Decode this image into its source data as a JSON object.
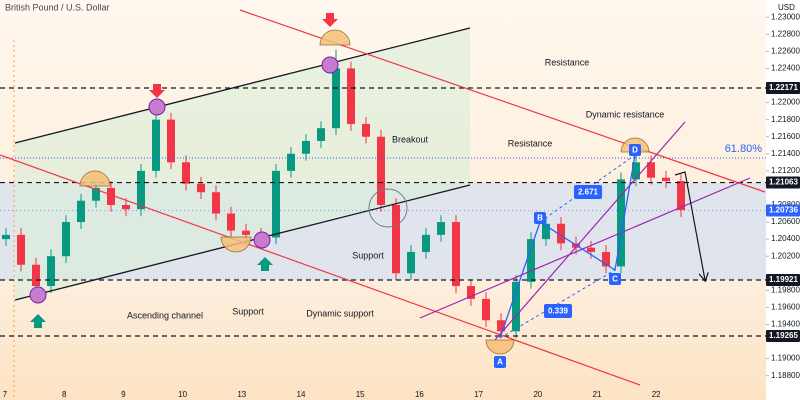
{
  "chart_data": {
    "type": "candlestick",
    "title": "British Pound / U.S. Dollar",
    "currency": "USD",
    "ylim": [
      1.18515,
      1.23202
    ],
    "yticks": [
      {
        "value": 1.188,
        "label": "1.18800"
      },
      {
        "value": 1.19,
        "label": "1.19000"
      },
      {
        "value": 1.194,
        "label": "1.19400"
      },
      {
        "value": 1.196,
        "label": "1.19600"
      },
      {
        "value": 1.198,
        "label": "1.19800"
      },
      {
        "value": 1.202,
        "label": "1.20200"
      },
      {
        "value": 1.204,
        "label": "1.20400"
      },
      {
        "value": 1.206,
        "label": "1.20600"
      },
      {
        "value": 1.208,
        "label": "1.20800"
      },
      {
        "value": 1.212,
        "label": "1.21200"
      },
      {
        "value": 1.214,
        "label": "1.21400"
      },
      {
        "value": 1.216,
        "label": "1.21600"
      },
      {
        "value": 1.218,
        "label": "1.21800"
      },
      {
        "value": 1.22,
        "label": "1.22000"
      },
      {
        "value": 1.224,
        "label": "1.22400"
      },
      {
        "value": 1.226,
        "label": "1.22600"
      },
      {
        "value": 1.228,
        "label": "1.22800"
      },
      {
        "value": 1.23,
        "label": "1.23000"
      }
    ],
    "xticks": [
      7,
      8,
      9,
      10,
      13,
      14,
      15,
      16,
      17,
      20,
      21,
      22
    ],
    "up_color": "#089981",
    "down_color": "#f23645",
    "open": [
      1.204,
      1.2045,
      1.201,
      1.1985,
      1.202,
      1.206,
      1.2085,
      1.21,
      1.208,
      1.2075,
      1.212,
      1.218,
      1.213,
      1.2105,
      1.2095,
      1.207,
      1.205,
      1.2045,
      1.2042,
      1.212,
      1.214,
      1.2155,
      1.217,
      1.224,
      1.2175,
      1.216,
      1.208,
      1.2,
      1.2025,
      1.2045,
      1.206,
      1.1985,
      1.197,
      1.1945,
      1.1932,
      1.199,
      1.204,
      1.2058,
      1.2035,
      1.203,
      1.2025,
      1.2008,
      1.211,
      1.213,
      1.2112,
      1.2108
    ],
    "high": [
      1.2053,
      1.2053,
      1.2018,
      1.2028,
      1.2068,
      1.2093,
      1.2108,
      1.2108,
      1.2088,
      1.2128,
      1.2195,
      1.2188,
      1.2138,
      1.2113,
      1.2103,
      1.2078,
      1.2058,
      1.2053,
      1.2128,
      1.2148,
      1.2163,
      1.2178,
      1.2262,
      1.2248,
      1.2183,
      1.2168,
      1.2088,
      1.2033,
      1.2053,
      1.2068,
      1.2068,
      1.1993,
      1.1978,
      1.1953,
      1.1998,
      1.2048,
      1.2066,
      1.2066,
      1.2043,
      1.2038,
      1.2033,
      1.2118,
      1.2138,
      1.2138,
      1.212,
      1.2116
    ],
    "low": [
      1.2032,
      1.2002,
      1.1972,
      1.1977,
      1.2012,
      1.2052,
      1.2077,
      1.2072,
      1.2067,
      1.2067,
      1.2112,
      1.2122,
      1.2097,
      1.2087,
      1.2062,
      1.2042,
      1.2037,
      1.2035,
      1.2034,
      1.2112,
      1.2132,
      1.2147,
      1.2162,
      1.2167,
      1.2152,
      1.2072,
      1.1992,
      1.1992,
      1.2017,
      1.2037,
      1.1977,
      1.1962,
      1.1937,
      1.1925,
      1.1924,
      1.1982,
      1.2032,
      1.2027,
      1.2022,
      1.2017,
      1.2,
      1.2,
      1.2102,
      1.2104,
      1.21,
      1.2066
    ],
    "close": [
      1.2045,
      1.201,
      1.1985,
      1.202,
      1.206,
      1.2085,
      1.21,
      1.208,
      1.2075,
      1.212,
      1.218,
      1.213,
      1.2105,
      1.2095,
      1.207,
      1.205,
      1.2045,
      1.2042,
      1.212,
      1.214,
      1.2155,
      1.217,
      1.224,
      1.2175,
      1.216,
      1.208,
      1.2,
      1.2025,
      1.2045,
      1.206,
      1.1985,
      1.197,
      1.1945,
      1.1932,
      1.199,
      1.204,
      1.2058,
      1.2035,
      1.203,
      1.2025,
      1.2008,
      1.211,
      1.213,
      1.2112,
      1.2108,
      1.2074
    ],
    "levels": [
      1.22171,
      1.21063,
      1.19921,
      1.19265
    ],
    "last_price": 1.20736,
    "fib": {
      "text": "61.80%",
      "price": 1.2135
    },
    "annotations": [
      "Resistance",
      "Dynamic resistance",
      "Breakout",
      "Resistance",
      "Support",
      "Ascending channel",
      "Support",
      "Dynamic support"
    ],
    "pattern_points": [
      "A",
      "B",
      "C",
      "D"
    ],
    "ratios": [
      "2.671",
      "0.339"
    ]
  }
}
